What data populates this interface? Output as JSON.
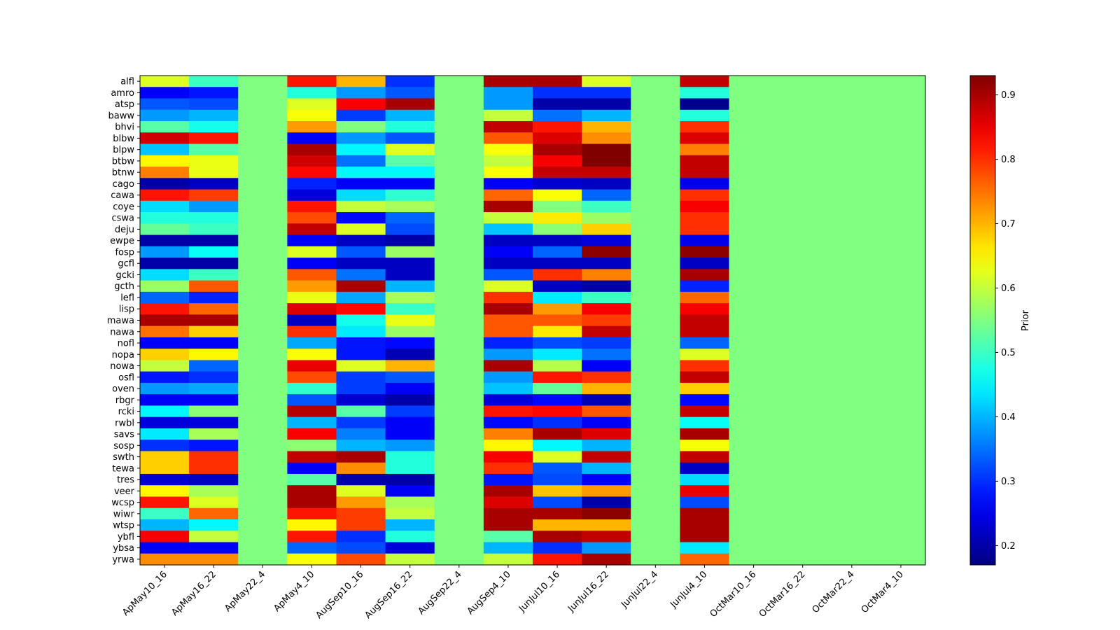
{
  "chart_data": {
    "type": "heatmap",
    "title": "",
    "xlabel": "",
    "ylabel": "",
    "x_categories": [
      "ApMay10_16",
      "ApMay16_22",
      "ApMay22_4",
      "ApMay4_10",
      "AugSep10_16",
      "AugSep16_22",
      "AugSep22_4",
      "AugSep4_10",
      "JunJul10_16",
      "JunJul16_22",
      "JunJul22_4",
      "JunJul4_10",
      "OctMar10_16",
      "OctMar16_22",
      "OctMar22_4",
      "OctMar4_10"
    ],
    "y_categories": [
      "alfl",
      "amro",
      "atsp",
      "baww",
      "bhvi",
      "blbw",
      "blpw",
      "btbw",
      "btnw",
      "cago",
      "cawa",
      "coye",
      "cswa",
      "deju",
      "ewpe",
      "fosp",
      "gcfl",
      "gcki",
      "gcth",
      "lefl",
      "lisp",
      "mawa",
      "nawa",
      "nofl",
      "nopa",
      "nowa",
      "osfl",
      "oven",
      "rbgr",
      "rcki",
      "rwbl",
      "savs",
      "sosp",
      "swth",
      "tewa",
      "tres",
      "veer",
      "wcsp",
      "wiwr",
      "wtsp",
      "ybfl",
      "ybsa",
      "yrwa"
    ],
    "colormap": "jet",
    "colorbar": {
      "label": "Prior",
      "vmin": 0.17,
      "vmax": 0.93,
      "ticks": [
        "0.2",
        "0.3",
        "0.4",
        "0.5",
        "0.6",
        "0.7",
        "0.8",
        "0.9"
      ],
      "tick_values": [
        0.2,
        0.3,
        0.4,
        0.5,
        0.6,
        0.7,
        0.8,
        0.9
      ]
    },
    "values": [
      [
        0.62,
        0.5,
        0.55,
        0.82,
        0.7,
        0.3,
        0.55,
        0.9,
        0.9,
        0.62,
        0.55,
        0.88,
        0.55,
        0.55,
        0.55,
        0.55
      ],
      [
        0.26,
        0.28,
        0.55,
        0.48,
        0.38,
        0.33,
        0.55,
        0.38,
        0.3,
        0.3,
        0.55,
        0.48,
        0.55,
        0.55,
        0.55,
        0.55
      ],
      [
        0.33,
        0.32,
        0.55,
        0.62,
        0.84,
        0.9,
        0.55,
        0.38,
        0.2,
        0.2,
        0.55,
        0.18,
        0.55,
        0.55,
        0.55,
        0.55
      ],
      [
        0.38,
        0.4,
        0.55,
        0.64,
        0.31,
        0.4,
        0.55,
        0.6,
        0.35,
        0.4,
        0.55,
        0.48,
        0.55,
        0.55,
        0.55,
        0.55
      ],
      [
        0.52,
        0.47,
        0.55,
        0.72,
        0.55,
        0.48,
        0.55,
        0.88,
        0.82,
        0.7,
        0.55,
        0.8,
        0.55,
        0.55,
        0.55,
        0.55
      ],
      [
        0.87,
        0.82,
        0.55,
        0.26,
        0.38,
        0.33,
        0.55,
        0.77,
        0.86,
        0.73,
        0.55,
        0.86,
        0.55,
        0.55,
        0.55,
        0.55
      ],
      [
        0.41,
        0.52,
        0.55,
        0.9,
        0.45,
        0.62,
        0.55,
        0.64,
        0.9,
        0.93,
        0.55,
        0.74,
        0.55,
        0.55,
        0.55,
        0.55
      ],
      [
        0.65,
        0.63,
        0.55,
        0.87,
        0.35,
        0.52,
        0.55,
        0.6,
        0.84,
        0.93,
        0.55,
        0.88,
        0.55,
        0.55,
        0.55,
        0.55
      ],
      [
        0.74,
        0.63,
        0.55,
        0.83,
        0.45,
        0.45,
        0.55,
        0.64,
        0.88,
        0.88,
        0.55,
        0.88,
        0.55,
        0.55,
        0.55,
        0.55
      ],
      [
        0.2,
        0.22,
        0.55,
        0.29,
        0.26,
        0.26,
        0.55,
        0.26,
        0.23,
        0.22,
        0.55,
        0.25,
        0.55,
        0.55,
        0.55,
        0.55
      ],
      [
        0.82,
        0.79,
        0.55,
        0.24,
        0.43,
        0.49,
        0.55,
        0.76,
        0.64,
        0.34,
        0.55,
        0.8,
        0.55,
        0.55,
        0.55,
        0.55
      ],
      [
        0.43,
        0.38,
        0.55,
        0.82,
        0.6,
        0.58,
        0.55,
        0.9,
        0.55,
        0.5,
        0.55,
        0.84,
        0.55,
        0.55,
        0.55,
        0.55
      ],
      [
        0.48,
        0.48,
        0.55,
        0.78,
        0.27,
        0.34,
        0.55,
        0.6,
        0.66,
        0.57,
        0.55,
        0.8,
        0.55,
        0.55,
        0.55,
        0.55
      ],
      [
        0.53,
        0.5,
        0.55,
        0.88,
        0.62,
        0.32,
        0.55,
        0.41,
        0.56,
        0.68,
        0.55,
        0.8,
        0.55,
        0.55,
        0.55,
        0.55
      ],
      [
        0.2,
        0.2,
        0.55,
        0.26,
        0.22,
        0.2,
        0.55,
        0.22,
        0.22,
        0.24,
        0.55,
        0.25,
        0.55,
        0.55,
        0.55,
        0.55
      ],
      [
        0.38,
        0.46,
        0.55,
        0.62,
        0.33,
        0.57,
        0.55,
        0.26,
        0.34,
        0.92,
        0.55,
        0.92,
        0.55,
        0.55,
        0.55,
        0.55
      ],
      [
        0.2,
        0.2,
        0.55,
        0.26,
        0.22,
        0.22,
        0.55,
        0.22,
        0.22,
        0.22,
        0.55,
        0.22,
        0.55,
        0.55,
        0.55,
        0.55
      ],
      [
        0.43,
        0.5,
        0.55,
        0.77,
        0.35,
        0.22,
        0.55,
        0.33,
        0.8,
        0.74,
        0.55,
        0.9,
        0.55,
        0.55,
        0.55,
        0.55
      ],
      [
        0.57,
        0.77,
        0.55,
        0.72,
        0.9,
        0.4,
        0.55,
        0.62,
        0.22,
        0.2,
        0.55,
        0.29,
        0.55,
        0.55,
        0.55,
        0.55
      ],
      [
        0.34,
        0.29,
        0.55,
        0.63,
        0.39,
        0.58,
        0.55,
        0.8,
        0.44,
        0.5,
        0.55,
        0.76,
        0.55,
        0.55,
        0.55,
        0.55
      ],
      [
        0.82,
        0.76,
        0.55,
        0.86,
        0.83,
        0.5,
        0.55,
        0.9,
        0.72,
        0.84,
        0.55,
        0.84,
        0.55,
        0.55,
        0.55,
        0.55
      ],
      [
        0.9,
        0.9,
        0.55,
        0.22,
        0.47,
        0.63,
        0.55,
        0.77,
        0.77,
        0.79,
        0.55,
        0.88,
        0.55,
        0.55,
        0.55,
        0.55
      ],
      [
        0.75,
        0.68,
        0.55,
        0.8,
        0.44,
        0.57,
        0.55,
        0.77,
        0.66,
        0.88,
        0.55,
        0.88,
        0.55,
        0.55,
        0.55,
        0.55
      ],
      [
        0.26,
        0.26,
        0.55,
        0.39,
        0.28,
        0.27,
        0.55,
        0.29,
        0.32,
        0.31,
        0.55,
        0.34,
        0.55,
        0.55,
        0.55,
        0.55
      ],
      [
        0.68,
        0.65,
        0.55,
        0.64,
        0.28,
        0.21,
        0.55,
        0.38,
        0.44,
        0.35,
        0.55,
        0.62,
        0.55,
        0.55,
        0.55,
        0.55
      ],
      [
        0.6,
        0.34,
        0.55,
        0.85,
        0.62,
        0.7,
        0.55,
        0.9,
        0.59,
        0.26,
        0.55,
        0.8,
        0.55,
        0.55,
        0.55,
        0.55
      ],
      [
        0.28,
        0.3,
        0.55,
        0.78,
        0.31,
        0.33,
        0.55,
        0.38,
        0.82,
        0.8,
        0.55,
        0.88,
        0.55,
        0.55,
        0.55,
        0.55
      ],
      [
        0.38,
        0.39,
        0.55,
        0.49,
        0.31,
        0.26,
        0.55,
        0.41,
        0.53,
        0.7,
        0.55,
        0.68,
        0.55,
        0.55,
        0.55,
        0.55
      ],
      [
        0.26,
        0.26,
        0.55,
        0.33,
        0.23,
        0.2,
        0.55,
        0.24,
        0.27,
        0.21,
        0.55,
        0.27,
        0.55,
        0.55,
        0.55,
        0.55
      ],
      [
        0.45,
        0.56,
        0.55,
        0.89,
        0.52,
        0.31,
        0.55,
        0.82,
        0.83,
        0.77,
        0.55,
        0.88,
        0.55,
        0.55,
        0.55,
        0.55
      ],
      [
        0.24,
        0.24,
        0.55,
        0.4,
        0.31,
        0.26,
        0.55,
        0.27,
        0.3,
        0.26,
        0.55,
        0.46,
        0.55,
        0.55,
        0.55,
        0.55
      ],
      [
        0.44,
        0.58,
        0.55,
        0.84,
        0.36,
        0.26,
        0.55,
        0.74,
        0.9,
        0.86,
        0.55,
        0.9,
        0.55,
        0.55,
        0.55,
        0.55
      ],
      [
        0.3,
        0.28,
        0.55,
        0.56,
        0.4,
        0.38,
        0.55,
        0.65,
        0.45,
        0.4,
        0.55,
        0.64,
        0.55,
        0.55,
        0.55,
        0.55
      ],
      [
        0.68,
        0.8,
        0.55,
        0.88,
        0.9,
        0.48,
        0.55,
        0.84,
        0.62,
        0.88,
        0.55,
        0.88,
        0.55,
        0.55,
        0.55,
        0.55
      ],
      [
        0.68,
        0.8,
        0.55,
        0.26,
        0.73,
        0.48,
        0.55,
        0.8,
        0.33,
        0.4,
        0.55,
        0.22,
        0.55,
        0.55,
        0.55,
        0.55
      ],
      [
        0.23,
        0.22,
        0.55,
        0.52,
        0.2,
        0.2,
        0.55,
        0.28,
        0.32,
        0.26,
        0.55,
        0.43,
        0.55,
        0.55,
        0.55,
        0.55
      ],
      [
        0.65,
        0.58,
        0.55,
        0.9,
        0.62,
        0.26,
        0.55,
        0.9,
        0.69,
        0.72,
        0.55,
        0.85,
        0.55,
        0.55,
        0.55,
        0.55
      ],
      [
        0.82,
        0.62,
        0.55,
        0.9,
        0.72,
        0.58,
        0.55,
        0.86,
        0.32,
        0.2,
        0.55,
        0.32,
        0.55,
        0.55,
        0.55,
        0.55
      ],
      [
        0.5,
        0.76,
        0.55,
        0.82,
        0.79,
        0.6,
        0.55,
        0.9,
        0.9,
        0.92,
        0.55,
        0.9,
        0.55,
        0.55,
        0.55,
        0.55
      ],
      [
        0.4,
        0.45,
        0.55,
        0.65,
        0.79,
        0.4,
        0.55,
        0.9,
        0.7,
        0.7,
        0.55,
        0.9,
        0.55,
        0.55,
        0.55,
        0.55
      ],
      [
        0.84,
        0.6,
        0.55,
        0.82,
        0.3,
        0.48,
        0.55,
        0.52,
        0.9,
        0.88,
        0.55,
        0.9,
        0.55,
        0.55,
        0.55,
        0.55
      ],
      [
        0.26,
        0.26,
        0.55,
        0.34,
        0.32,
        0.24,
        0.55,
        0.4,
        0.3,
        0.38,
        0.55,
        0.44,
        0.55,
        0.55,
        0.55,
        0.55
      ],
      [
        0.73,
        0.73,
        0.55,
        0.64,
        0.78,
        0.6,
        0.55,
        0.6,
        0.82,
        0.9,
        0.55,
        0.76,
        0.55,
        0.55,
        0.55,
        0.55
      ]
    ]
  }
}
